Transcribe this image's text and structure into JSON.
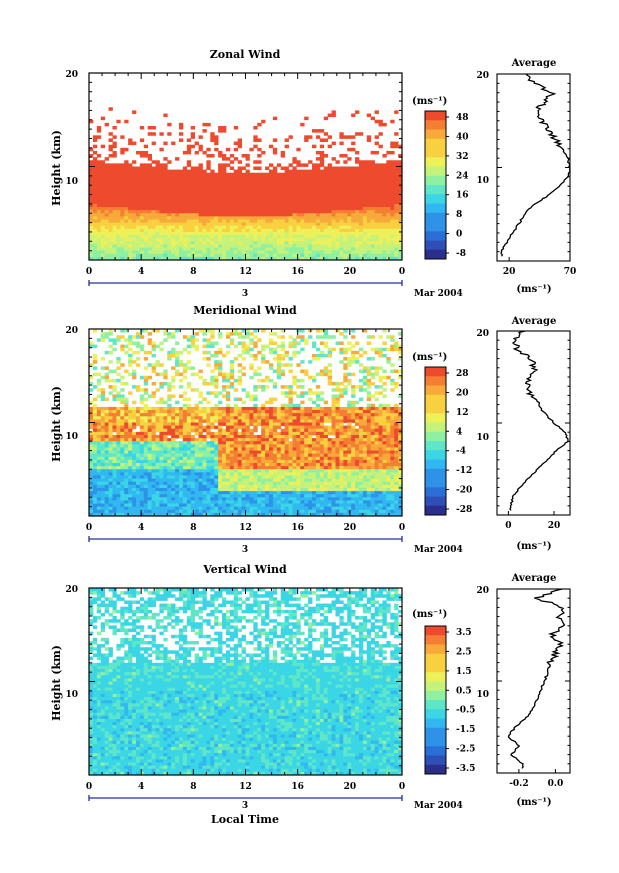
{
  "common": {
    "time_ticks": [
      "0",
      "4",
      "8",
      "12",
      "16",
      "20",
      "0"
    ],
    "date_label": "3",
    "month_label": "Mar 2004",
    "xlabel": "Local Time",
    "ylabel": "Height (km)",
    "height_ticks": [
      "10",
      "20"
    ],
    "unit_label": "(ms⁻¹)",
    "colors": [
      "#2b2f8c",
      "#2e4fb8",
      "#2a6fd6",
      "#2e93e8",
      "#31b8f0",
      "#3ad6e6",
      "#5fe6c8",
      "#8ff0a0",
      "#c4f27a",
      "#eef05a",
      "#f8d040",
      "#f7a93a",
      "#f47e33",
      "#ee4a2e"
    ]
  },
  "chart_data": [
    {
      "type": "heatmap",
      "title": "Zonal Wind",
      "x_range_hours": [
        0,
        24
      ],
      "y_range_km": [
        0,
        20
      ],
      "colorbar_ticks": [
        "48",
        "40",
        "32",
        "24",
        "16",
        "8",
        "0",
        "-8"
      ],
      "profile": {
        "title": "Average",
        "xlabel": "(ms⁻¹)",
        "x_ticks": [
          "20",
          "70"
        ],
        "x_range": [
          10,
          70
        ],
        "height_km": [
          1,
          2,
          3,
          4,
          5,
          6,
          7,
          8,
          9,
          10,
          11,
          12,
          13,
          14,
          15,
          16,
          17,
          18,
          19,
          20
        ],
        "values": [
          14,
          18,
          23,
          28,
          33,
          40,
          52,
          62,
          68,
          70,
          68,
          64,
          58,
          52,
          46,
          42,
          50,
          55,
          40,
          32
        ]
      }
    },
    {
      "type": "heatmap",
      "title": "Meridional Wind",
      "x_range_hours": [
        0,
        24
      ],
      "y_range_km": [
        0,
        20
      ],
      "colorbar_ticks": [
        "28",
        "20",
        "12",
        "4",
        "-4",
        "-12",
        "-20",
        "-28"
      ],
      "profile": {
        "title": "Average",
        "xlabel": "(ms⁻¹)",
        "x_ticks": [
          "0",
          "20"
        ],
        "x_range": [
          -5,
          27
        ],
        "height_km": [
          1,
          2,
          3,
          4,
          5,
          6,
          7,
          8,
          9,
          10,
          11,
          12,
          13,
          14,
          15,
          16,
          17,
          18,
          19,
          20
        ],
        "values": [
          1,
          2,
          5,
          9,
          13,
          17,
          21,
          26,
          25,
          20,
          16,
          13,
          10,
          8,
          10,
          12,
          9,
          4,
          2,
          6
        ]
      }
    },
    {
      "type": "heatmap",
      "title": "Vertical Wind",
      "x_range_hours": [
        0,
        24
      ],
      "y_range_km": [
        0,
        20
      ],
      "colorbar_ticks": [
        "3.5",
        "2.5",
        "1.5",
        "0.5",
        "-0.5",
        "-1.5",
        "-2.5",
        "-3.5"
      ],
      "profile": {
        "title": "Average",
        "xlabel": "(ms⁻¹)",
        "x_ticks": [
          "-0.2",
          "0.0"
        ],
        "x_range": [
          -0.32,
          0.08
        ],
        "height_km": [
          1,
          2,
          3,
          4,
          5,
          6,
          7,
          8,
          9,
          10,
          11,
          12,
          13,
          14,
          15,
          16,
          17,
          18,
          19,
          20
        ],
        "values": [
          -0.18,
          -0.24,
          -0.2,
          -0.26,
          -0.22,
          -0.16,
          -0.12,
          -0.1,
          -0.08,
          -0.06,
          -0.04,
          -0.03,
          0.0,
          0.03,
          -0.02,
          0.05,
          0.02,
          0.04,
          -0.1,
          0.02
        ]
      }
    }
  ]
}
